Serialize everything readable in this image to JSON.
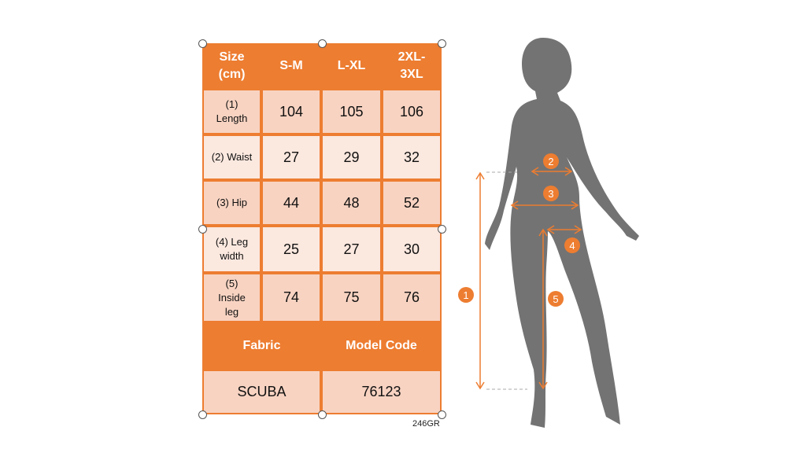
{
  "table": {
    "header": [
      "Size\n(cm)",
      "S-M",
      "L-XL",
      "2XL-\n3XL"
    ],
    "rows": [
      {
        "label": "(1)\nLength",
        "values": [
          "104",
          "105",
          "106"
        ]
      },
      {
        "label": "(2) Waist",
        "values": [
          "27",
          "29",
          "32"
        ]
      },
      {
        "label": "(3) Hip",
        "values": [
          "44",
          "48",
          "52"
        ]
      },
      {
        "label": "(4) Leg\nwidth",
        "values": [
          "25",
          "27",
          "30"
        ]
      },
      {
        "label": "(5)\nInside\nleg",
        "values": [
          "74",
          "75",
          "76"
        ]
      }
    ],
    "footer_header": [
      "Fabric",
      "Model Code"
    ],
    "footer_values": [
      "SCUBA",
      "76123"
    ]
  },
  "code_label": "246GR",
  "figure": {
    "markers": [
      "1",
      "2",
      "3",
      "4",
      "5"
    ],
    "colors": {
      "accent": "#ed7d31",
      "silhouette": "#737373"
    }
  }
}
